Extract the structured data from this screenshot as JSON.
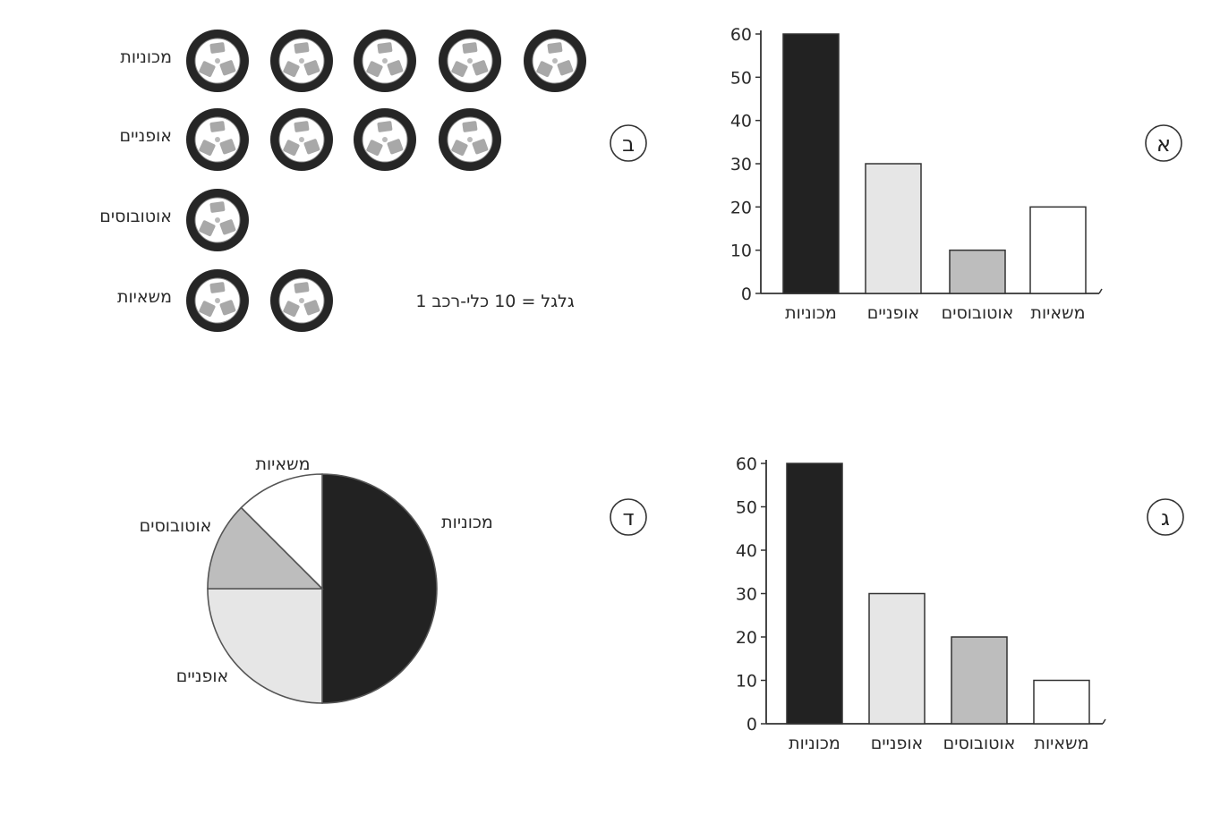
{
  "markers": {
    "a": "א",
    "b": "ב",
    "g": "ג",
    "d": "ד"
  },
  "chart_data": [
    {
      "panel": "א",
      "type": "bar",
      "categories": [
        "מכוניות",
        "אופניים",
        "אוטובוסים",
        "משאיות"
      ],
      "values": [
        60,
        30,
        10,
        20
      ],
      "ylim": [
        0,
        60
      ],
      "yticks": [
        "0",
        "10",
        "20",
        "30",
        "40",
        "50",
        "60"
      ],
      "colors": [
        "#222222",
        "#e6e6e6",
        "#bdbdbd",
        "#ffffff"
      ]
    },
    {
      "panel": "ב",
      "type": "pictograph",
      "categories": [
        "מכוניות",
        "אופניים",
        "אוטובוסים",
        "משאיות"
      ],
      "values": [
        50,
        40,
        10,
        20
      ],
      "icon": "wheel-icon",
      "legend": "1 גלגל = 10 כלי-רכב"
    },
    {
      "panel": "ג",
      "type": "bar",
      "categories": [
        "מכוניות",
        "אופניים",
        "אוטובוסים",
        "משאיות"
      ],
      "values": [
        60,
        30,
        20,
        10
      ],
      "ylim": [
        0,
        60
      ],
      "yticks": [
        "0",
        "10",
        "20",
        "30",
        "40",
        "50",
        "60"
      ],
      "colors": [
        "#222222",
        "#e6e6e6",
        "#bdbdbd",
        "#ffffff"
      ]
    },
    {
      "panel": "ד",
      "type": "pie",
      "categories": [
        "מכוניות",
        "אופניים",
        "אוטובוסים",
        "משאיות"
      ],
      "values": [
        50,
        25,
        12.5,
        12.5
      ],
      "colors": [
        "#222222",
        "#e6e6e6",
        "#bdbdbd",
        "#ffffff"
      ]
    }
  ]
}
